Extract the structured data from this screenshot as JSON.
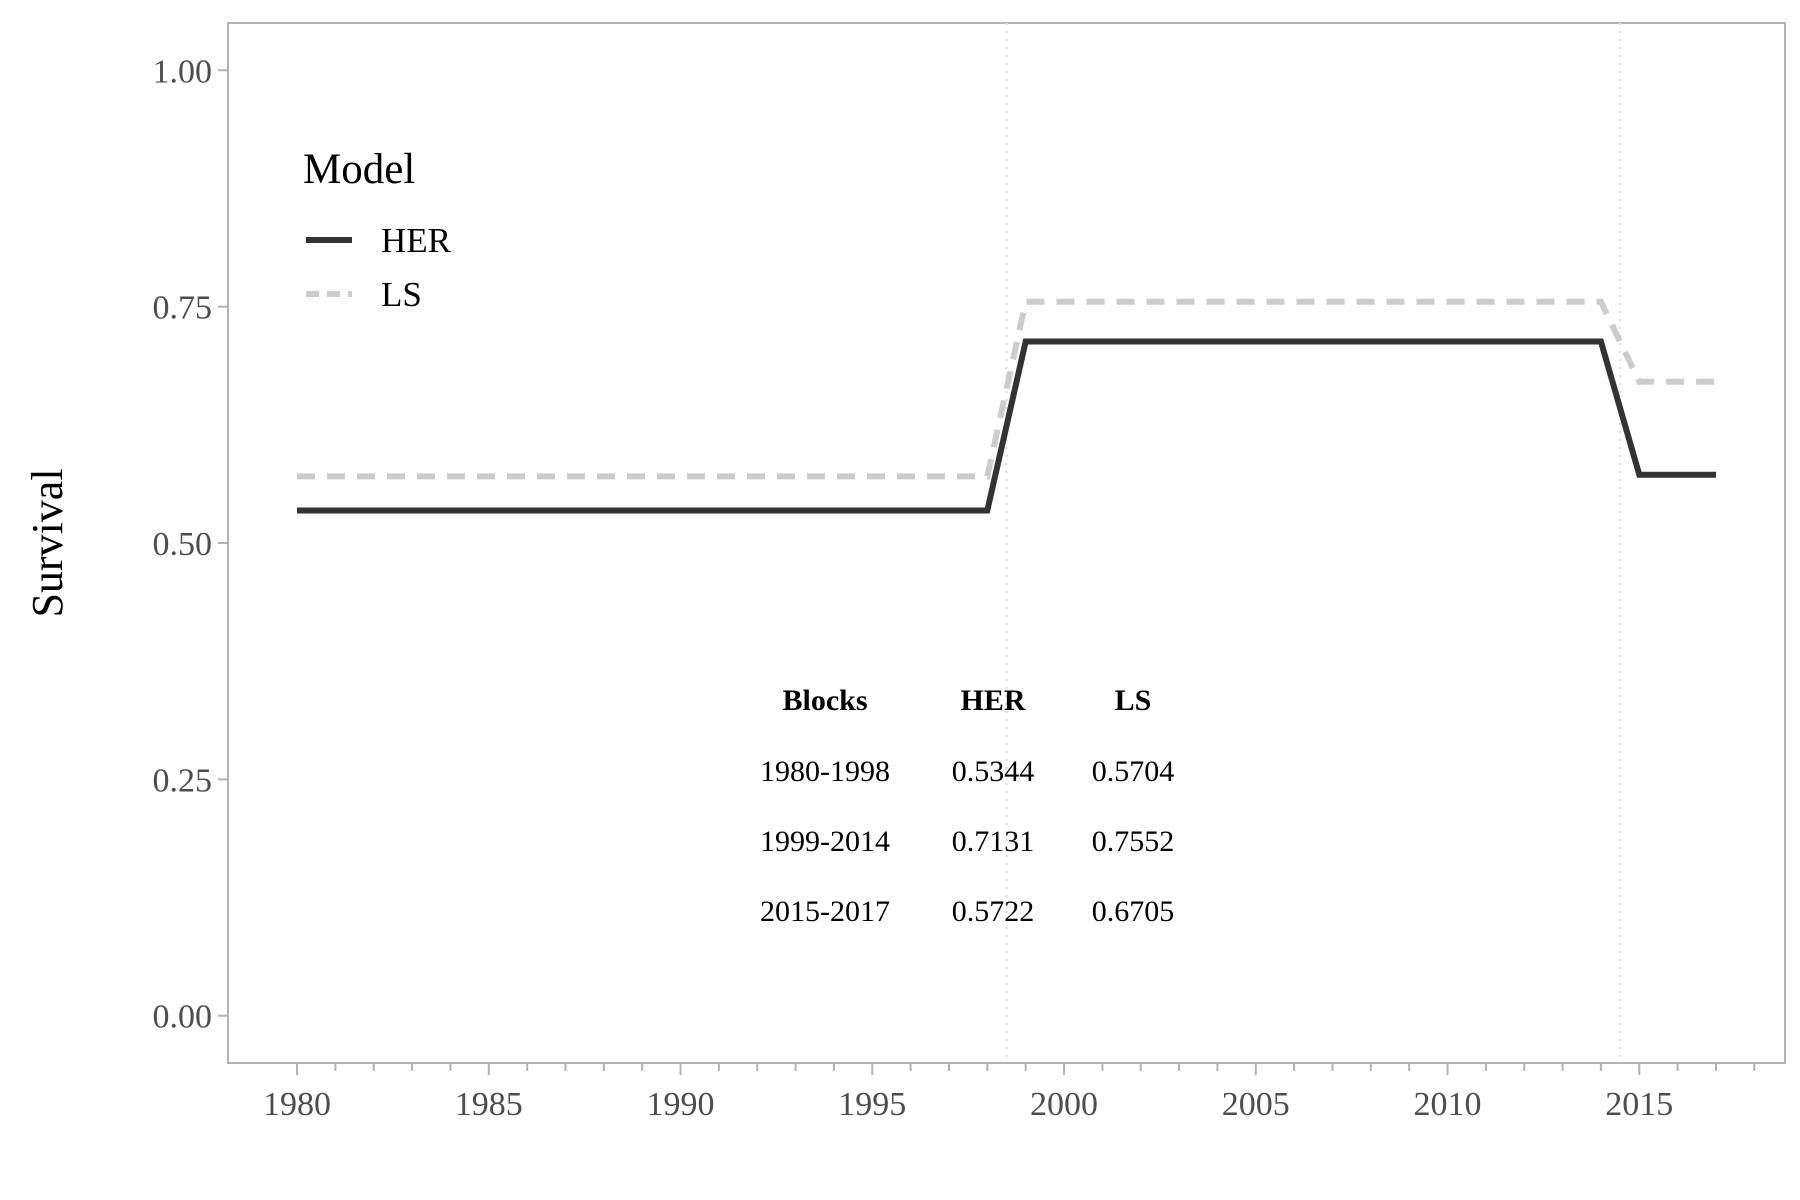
{
  "chart_data": {
    "type": "line",
    "title": "",
    "xlabel": "",
    "ylabel": "Survival",
    "xlim": [
      1978.2,
      2018.8
    ],
    "ylim": [
      -0.05,
      1.05
    ],
    "x_ticks": [
      1980,
      1985,
      1990,
      1995,
      2000,
      2005,
      2010,
      2015
    ],
    "y_ticks": [
      0,
      0.25,
      0.5,
      0.75,
      1.0
    ],
    "y_tick_labels": [
      "0.00",
      "0.25",
      "0.50",
      "0.75",
      "1.00"
    ],
    "grid": false,
    "vlines": [
      1998.5,
      2014.5
    ],
    "legend": {
      "title": "Model",
      "position": "top-left"
    },
    "series": [
      {
        "name": "HER",
        "style": "solid",
        "color": "#333333",
        "x": [
          1980,
          1998,
          1999,
          2014,
          2015,
          2017
        ],
        "y": [
          0.5344,
          0.5344,
          0.7131,
          0.7131,
          0.5722,
          0.5722
        ]
      },
      {
        "name": "LS",
        "style": "dashed",
        "color": "#cccccc",
        "x": [
          1980,
          1998,
          1999,
          2014,
          2015,
          2017
        ],
        "y": [
          0.5704,
          0.5704,
          0.7552,
          0.7552,
          0.6705,
          0.6705
        ]
      }
    ],
    "table": {
      "headers": [
        "Blocks",
        "HER",
        "LS"
      ],
      "rows": [
        [
          "1980-1998",
          "0.5344",
          "0.5704"
        ],
        [
          "1999-2014",
          "0.7131",
          "0.7552"
        ],
        [
          "2015-2017",
          "0.5722",
          "0.6705"
        ]
      ]
    }
  }
}
